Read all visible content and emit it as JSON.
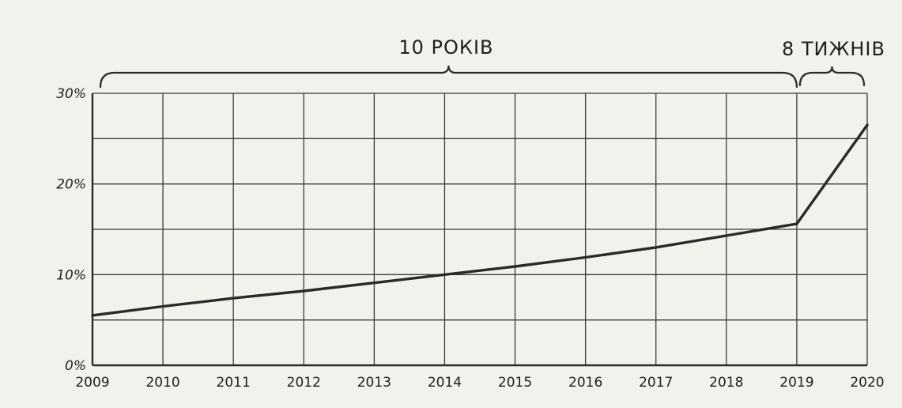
{
  "chart_data": {
    "type": "line",
    "title": "",
    "xlabel": "",
    "ylabel": "",
    "x": [
      2009,
      2010,
      2011,
      2012,
      2013,
      2014,
      2015,
      2016,
      2017,
      2018,
      2019,
      2020
    ],
    "y_ticks": [
      "0%",
      "10%",
      "20%",
      "30%"
    ],
    "ylim": [
      0,
      30
    ],
    "grid": true,
    "series": [
      {
        "x": [
          2009,
          2010,
          2011,
          2012,
          2013,
          2014,
          2015,
          2016,
          2017,
          2018,
          2019,
          2020
        ],
        "values": [
          5.5,
          6.5,
          7.4,
          8.2,
          9.1,
          10.0,
          10.9,
          11.9,
          13.0,
          14.3,
          15.6,
          26.5
        ]
      }
    ],
    "annotations": {
      "years_bracket": "10 РОКІВ",
      "weeks_bracket": "8 ТИЖНІВ"
    },
    "colors": {
      "line": "#2a2a2a",
      "grid": "#3a3a3a",
      "background": "#f3f1ec"
    }
  }
}
